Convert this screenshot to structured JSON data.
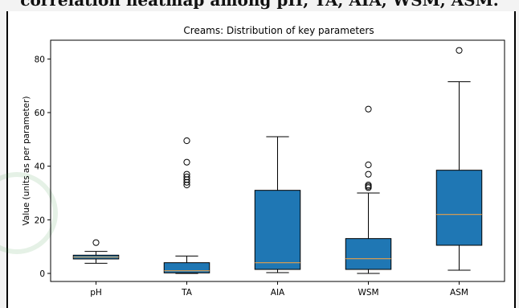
{
  "page": {
    "top_caption": "correlation heatmap among pH, TA, AIA, WSM, ASM."
  },
  "colors": {
    "box_fill": "#1f77b4",
    "median": "#e8a04a",
    "axis": "#000000"
  },
  "chart_data": {
    "type": "boxplot",
    "title": "Creams: Distribution of key parameters",
    "xlabel": "",
    "ylabel": "Value (units as per parameter)",
    "ylim": [
      -3,
      87
    ],
    "yticks": [
      0,
      20,
      40,
      60,
      80
    ],
    "grid": false,
    "categories": [
      "pH",
      "TA",
      "AIA",
      "WSM",
      "ASM"
    ],
    "boxes": [
      {
        "name": "pH",
        "whisker_low": 3.8,
        "q1": 5.4,
        "median": 6.1,
        "q3": 6.8,
        "whisker_high": 8.2,
        "outliers": [
          11.5
        ]
      },
      {
        "name": "TA",
        "whisker_low": 0.0,
        "q1": 0.2,
        "median": 1.0,
        "q3": 4.0,
        "whisker_high": 6.5,
        "outliers": [
          33,
          34,
          35,
          36,
          37,
          41.5,
          49.5
        ]
      },
      {
        "name": "AIA",
        "whisker_low": 0.3,
        "q1": 1.5,
        "median": 4.0,
        "q3": 31.0,
        "whisker_high": 51.0,
        "outliers": []
      },
      {
        "name": "WSM",
        "whisker_low": 0.0,
        "q1": 1.5,
        "median": 5.5,
        "q3": 13.0,
        "whisker_high": 30.0,
        "outliers": [
          32,
          32.5,
          33,
          37,
          40.5,
          61.3
        ]
      },
      {
        "name": "ASM",
        "whisker_low": 1.2,
        "q1": 10.5,
        "median": 22.0,
        "q3": 38.5,
        "whisker_high": 71.5,
        "outliers": [
          83.2
        ]
      }
    ]
  }
}
